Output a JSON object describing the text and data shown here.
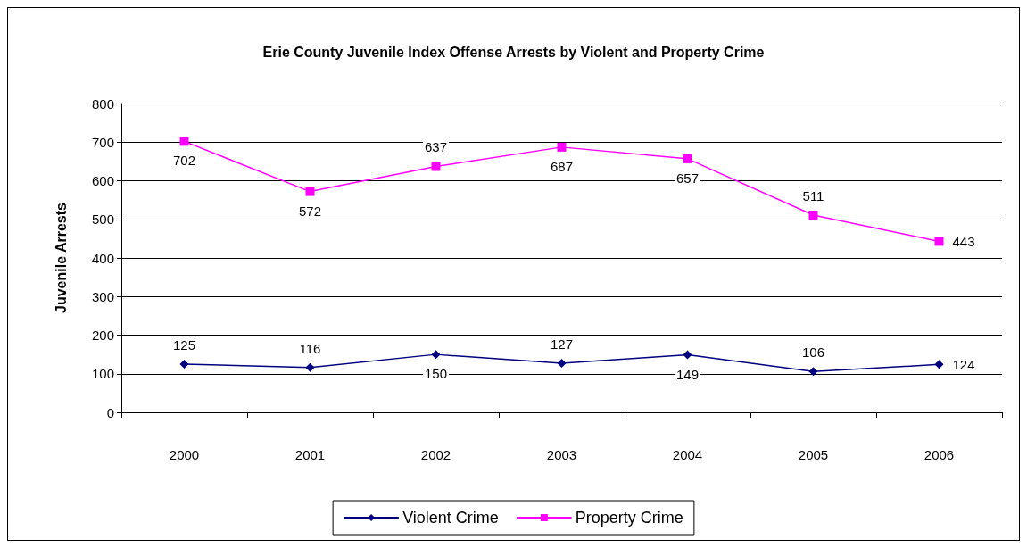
{
  "chart_data": {
    "type": "line",
    "title": "Erie County Juvenile Index Offense Arrests by Violent and Property Crime",
    "ylabel": "Juvenile Arrests",
    "categories": [
      "2000",
      "2001",
      "2002",
      "2003",
      "2004",
      "2005",
      "2006"
    ],
    "series": [
      {
        "name": "Violent Crime",
        "color": "#000080",
        "marker": "diamond",
        "values": [
          125,
          116,
          150,
          127,
          149,
          106,
          124
        ]
      },
      {
        "name": "Property Crime",
        "color": "#ff00ff",
        "marker": "square",
        "values": [
          702,
          572,
          637,
          687,
          657,
          511,
          443
        ]
      }
    ],
    "ylim": [
      0,
      800
    ],
    "yticks": [
      0,
      100,
      200,
      300,
      400,
      500,
      600,
      700,
      800
    ],
    "grid": "y",
    "legend": "bottom",
    "data_labels": true,
    "line_style": "solid"
  }
}
